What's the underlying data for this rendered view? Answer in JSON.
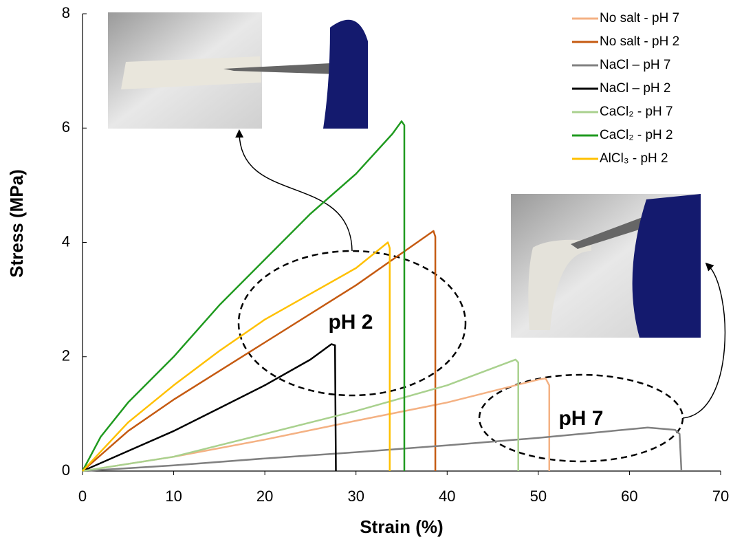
{
  "chart_data": {
    "type": "line",
    "xlabel": "Strain (%)",
    "ylabel": "Stress (MPa)",
    "xlim": [
      0,
      70
    ],
    "xticks": [
      0,
      10,
      20,
      30,
      40,
      50,
      60,
      70
    ],
    "ylim": [
      0,
      8
    ],
    "yticks": [
      0,
      2,
      4,
      6,
      8
    ],
    "legend": "upper right",
    "annotations": [
      "pH 2",
      "pH 7"
    ],
    "series": [
      {
        "name": "No salt - pH 7",
        "color": "#f4b183",
        "x": [
          0,
          10,
          20,
          30,
          40,
          50,
          50.8,
          51.2,
          51.2
        ],
        "values": [
          0,
          0.25,
          0.55,
          0.88,
          1.2,
          1.6,
          1.62,
          1.5,
          0
        ]
      },
      {
        "name": "No salt - pH 2",
        "color": "#c55a11",
        "x": [
          0,
          5,
          10,
          20,
          30,
          38.5,
          38.7,
          38.7
        ],
        "values": [
          0,
          0.7,
          1.25,
          2.25,
          3.25,
          4.2,
          4.1,
          0
        ]
      },
      {
        "name": "NaCl – pH 7",
        "color": "#808080",
        "x": [
          0,
          10,
          20,
          30,
          40,
          50,
          60,
          62,
          65,
          65.5,
          65.7
        ],
        "values": [
          0,
          0.1,
          0.22,
          0.33,
          0.45,
          0.58,
          0.73,
          0.76,
          0.72,
          0.65,
          0
        ]
      },
      {
        "name": "NaCl – pH 2",
        "color": "#000000",
        "x": [
          0,
          5,
          10,
          15,
          20,
          25,
          27.3,
          27.7,
          27.8
        ],
        "values": [
          0,
          0.35,
          0.7,
          1.1,
          1.5,
          1.95,
          2.22,
          2.2,
          0
        ]
      },
      {
        "name": "CaCl₂ - pH 7",
        "color": "#a9d18e",
        "x": [
          0,
          10,
          20,
          30,
          40,
          47.5,
          47.8,
          47.8
        ],
        "values": [
          0,
          0.25,
          0.65,
          1.05,
          1.5,
          1.95,
          1.9,
          0
        ]
      },
      {
        "name": "CaCl₂ - pH 2",
        "color": "#1f9a1f",
        "x": [
          0,
          2,
          5,
          10,
          15,
          20,
          25,
          30,
          34,
          35,
          35.3,
          35.3
        ],
        "values": [
          0,
          0.6,
          1.2,
          2.0,
          2.9,
          3.7,
          4.5,
          5.2,
          5.9,
          6.12,
          6.05,
          0
        ]
      },
      {
        "name": "AlCl₃ - pH 2",
        "color": "#ffc000",
        "x": [
          0,
          5,
          10,
          15,
          20,
          25,
          30,
          33.5,
          33.7,
          33.7
        ],
        "values": [
          0,
          0.85,
          1.5,
          2.1,
          2.65,
          3.1,
          3.55,
          4.0,
          3.9,
          0
        ]
      }
    ]
  }
}
